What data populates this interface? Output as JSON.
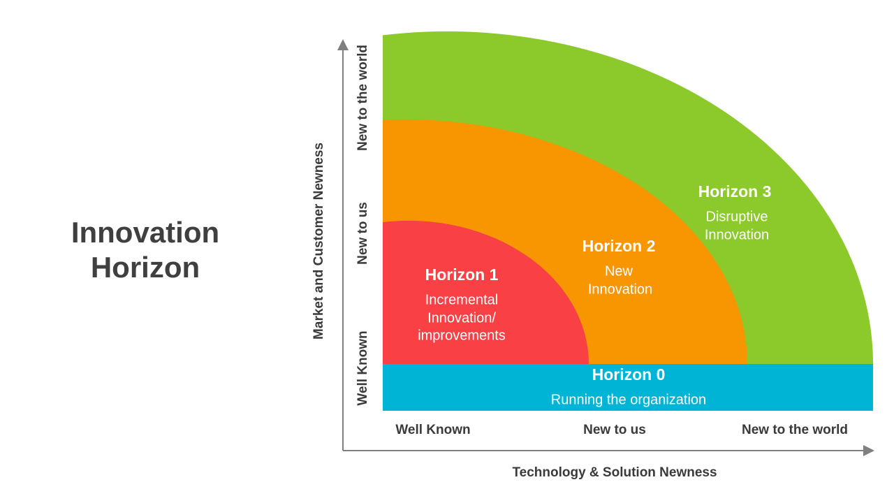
{
  "title": {
    "lines": [
      "Innovation",
      "Horizon"
    ]
  },
  "axes": {
    "y_label": "Market and Customer Newness",
    "x_label": "Technology & Solution Newness",
    "y_levels": [
      "Well Known",
      "New to us",
      "New to the world"
    ],
    "x_levels": [
      "Well Known",
      "New to us",
      "New to the world"
    ]
  },
  "horizons": [
    {
      "name": "Horizon 0",
      "description": [
        "Running the organization"
      ]
    },
    {
      "name": "Horizon 1",
      "description": [
        "Incremental",
        "Innovation/",
        "improvements"
      ]
    },
    {
      "name": "Horizon 2",
      "description": [
        "New",
        "Innovation"
      ]
    },
    {
      "name": "Horizon 3",
      "description": [
        "Disruptive",
        "Innovation"
      ]
    }
  ]
}
